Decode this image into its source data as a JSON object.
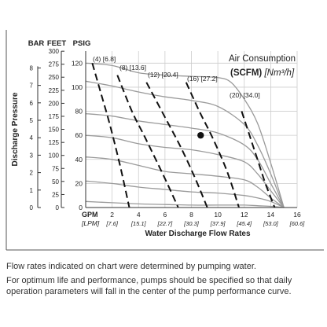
{
  "chart_data": {
    "type": "line",
    "title": "Air Consumption",
    "subtitle_unit": "(SCFM)",
    "subtitle_unit_metric": "[Nm³/h]",
    "xlabel": "Water Discharge Flow Rates",
    "ylabel": "Discharge Pressure",
    "x_unit": "GPM",
    "x_unit_metric": "[LPM]",
    "xlim": [
      0,
      16
    ],
    "ylim": [
      0,
      130
    ],
    "x_ticks": [
      {
        "gpm": "2",
        "lpm": "[7.6]"
      },
      {
        "gpm": "4",
        "lpm": "[15.1]"
      },
      {
        "gpm": "6",
        "lpm": "[22.7]"
      },
      {
        "gpm": "8",
        "lpm": "[30.3]"
      },
      {
        "gpm": "10",
        "lpm": "[37.9]"
      },
      {
        "gpm": "12",
        "lpm": "[45.4]"
      },
      {
        "gpm": "14",
        "lpm": "[53.0]"
      },
      {
        "gpm": "16",
        "lpm": "[60.6]"
      }
    ],
    "y_axes": {
      "bar": {
        "label": "BAR",
        "ticks": [
          "0",
          "1",
          "2",
          "3",
          "4",
          "5",
          "6",
          "7",
          "8"
        ],
        "values": [
          0,
          14.5,
          29,
          43.5,
          58,
          72.5,
          87,
          101.5,
          116
        ]
      },
      "feet": {
        "label": "FEET",
        "ticks": [
          "0",
          "25",
          "50",
          "75",
          "100",
          "125",
          "150",
          "175",
          "200",
          "225",
          "250",
          "275",
          "300"
        ],
        "values": [
          0,
          10.8,
          21.7,
          32.5,
          43.3,
          54.1,
          65,
          75.8,
          86.6,
          97.4,
          108.3,
          119.1,
          129.9
        ]
      },
      "psig": {
        "label": "PSIG",
        "ticks": [
          "0",
          "20",
          "40",
          "60",
          "80",
          "100",
          "120"
        ],
        "values": [
          0,
          20,
          40,
          60,
          80,
          100,
          120
        ]
      }
    },
    "grid": true,
    "performance_curves": [
      {
        "x": [
          0,
          2,
          4,
          6,
          8,
          10,
          12,
          13,
          14,
          15
        ],
        "y": [
          5,
          4,
          3,
          2.5,
          2,
          2,
          2,
          1.5,
          1,
          0
        ]
      },
      {
        "x": [
          0,
          2,
          4,
          6,
          8,
          10,
          12,
          13,
          14,
          15
        ],
        "y": [
          22,
          20,
          17,
          15,
          13,
          12,
          10,
          8,
          5,
          0
        ]
      },
      {
        "x": [
          0,
          2,
          4,
          6,
          8,
          10,
          12,
          13,
          14,
          15
        ],
        "y": [
          42,
          40,
          35,
          30,
          28,
          26,
          23,
          17,
          8,
          0
        ]
      },
      {
        "x": [
          0,
          2,
          4,
          6,
          8,
          10,
          12,
          13,
          14,
          15
        ],
        "y": [
          60,
          58,
          53,
          50,
          48,
          44,
          38,
          28,
          14,
          0
        ]
      },
      {
        "x": [
          0,
          2,
          4,
          6,
          8,
          10,
          12,
          13,
          14,
          15
        ],
        "y": [
          78,
          76,
          72,
          69,
          66,
          62,
          52,
          40,
          20,
          0
        ]
      },
      {
        "x": [
          0,
          2,
          4,
          6,
          8,
          10,
          12,
          13,
          14,
          15
        ],
        "y": [
          105,
          101,
          96,
          92,
          89,
          84,
          69,
          52,
          28,
          0
        ]
      },
      {
        "x": [
          0,
          2,
          4,
          6,
          8,
          10,
          11,
          12,
          13,
          14,
          15
        ],
        "y": [
          120,
          118,
          112,
          110,
          109,
          108,
          104,
          90,
          70,
          37,
          0
        ]
      }
    ],
    "air_consumption_curves": [
      {
        "scfm": "(4)",
        "nm3h": "[6.8]",
        "x": [
          0.5,
          1.1,
          1.8,
          2.6,
          3.3
        ],
        "y": [
          120,
          97,
          70,
          35,
          0
        ]
      },
      {
        "scfm": "(8)",
        "nm3h": "[13.6]",
        "x": [
          2.4,
          3.5,
          4.5,
          6.0,
          7.0
        ],
        "y": [
          110,
          80,
          58,
          24,
          0
        ]
      },
      {
        "scfm": "(12)",
        "nm3h": "[20.4]",
        "x": [
          4.6,
          6.0,
          7.2,
          8.3,
          9.2
        ],
        "y": [
          104,
          75,
          50,
          24,
          0
        ]
      },
      {
        "scfm": "(16)",
        "nm3h": "[27.2]",
        "x": [
          7.6,
          8.6,
          9.6,
          10.7,
          11.6
        ],
        "y": [
          104,
          80,
          58,
          30,
          0
        ]
      },
      {
        "scfm": "(20)",
        "nm3h": "[34.0]",
        "x": [
          11.8,
          12.4,
          13.0,
          13.6,
          14.3
        ],
        "y": [
          80,
          60,
          40,
          20,
          0
        ]
      }
    ],
    "marker": {
      "x": 8.7,
      "y": 60
    }
  },
  "notes": {
    "line1": "Flow rates indicated on chart were determined by pumping water.",
    "line2": "For optimum life and performance, pumps should be specified so that daily operation parameters will fall in the center of the pump performance curve."
  },
  "colors": {
    "performance_curve": "#9a9a9a",
    "air_curve": "#111111",
    "grid": "#cccccc",
    "frame": "#555555"
  }
}
